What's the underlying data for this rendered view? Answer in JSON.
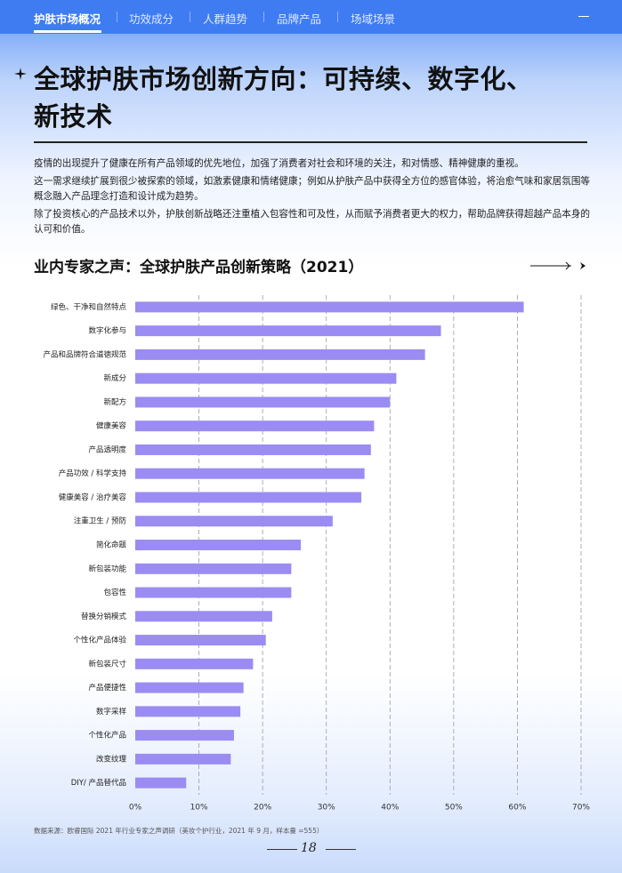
{
  "nav": {
    "items": [
      "护肤市场概况",
      "功效成分",
      "人群趋势",
      "品牌产品",
      "场域场景"
    ]
  },
  "heading": {
    "lines": [
      "全球护肤市场创新方向：可持续、数字化、",
      "新技术"
    ]
  },
  "paragraphs": [
    "疫情的出现提升了健康在所有产品领域的优先地位，加强了消费者对社会和环境的关注，和对情感、精神健康的重视。",
    "这一需求继续扩展到很少被探索的领域，如激素健康和情绪健康；例如从护肤产品中获得全方位的感官体验，将治愈气味和家居氛围等概念融入产品理念打造和设计成为趋势。",
    "除了投资核心的产品技术以外，护肤创新战略还注重植入包容性和可及性，从而赋予消费者更大的权力，帮助品牌获得超越产品本身的认可和价值。"
  ],
  "chart_data": {
    "type": "hbar",
    "title": "业内专家之声：全球护肤产品创新策略（2021）",
    "categories": [
      "绿色、干净和自然特点",
      "数字化参与",
      "产品和品牌符合道德规范",
      "新成分",
      "新配方",
      "健康美容",
      "产品透明度",
      "产品功效 / 科学支持",
      "健康美容 / 治疗美容",
      "注重卫生 / 预防",
      "简化命题",
      "新包装功能",
      "包容性",
      "替换分销模式",
      "个性化产品体验",
      "新包装尺寸",
      "产品便捷性",
      "数字采样",
      "个性化产品",
      "改变纹理",
      "DIY/ 产品替代品"
    ],
    "values": [
      61,
      48,
      45.5,
      41,
      40,
      37.5,
      37,
      36,
      35.5,
      31,
      26,
      24.5,
      24.5,
      21.5,
      20.5,
      18.5,
      17,
      16.5,
      15.5,
      15,
      8
    ],
    "color": "#9a8cf3",
    "xlim": [
      0,
      70
    ],
    "xticks": [
      {
        "value": 0,
        "label": "0%"
      },
      {
        "value": 10,
        "label": "10%"
      },
      {
        "value": 20,
        "label": "20%"
      },
      {
        "value": 30,
        "label": "30%"
      },
      {
        "value": 40,
        "label": "40%"
      },
      {
        "value": 50,
        "label": "50%"
      },
      {
        "value": 60,
        "label": "60%"
      },
      {
        "value": 70,
        "label": "70%"
      }
    ],
    "grid": true
  },
  "source": "数据来源：欧睿国际 2021 年行业专家之声调研（美妆个护行业，2021 年 9 月，样本量 =555）",
  "page_number": "18"
}
